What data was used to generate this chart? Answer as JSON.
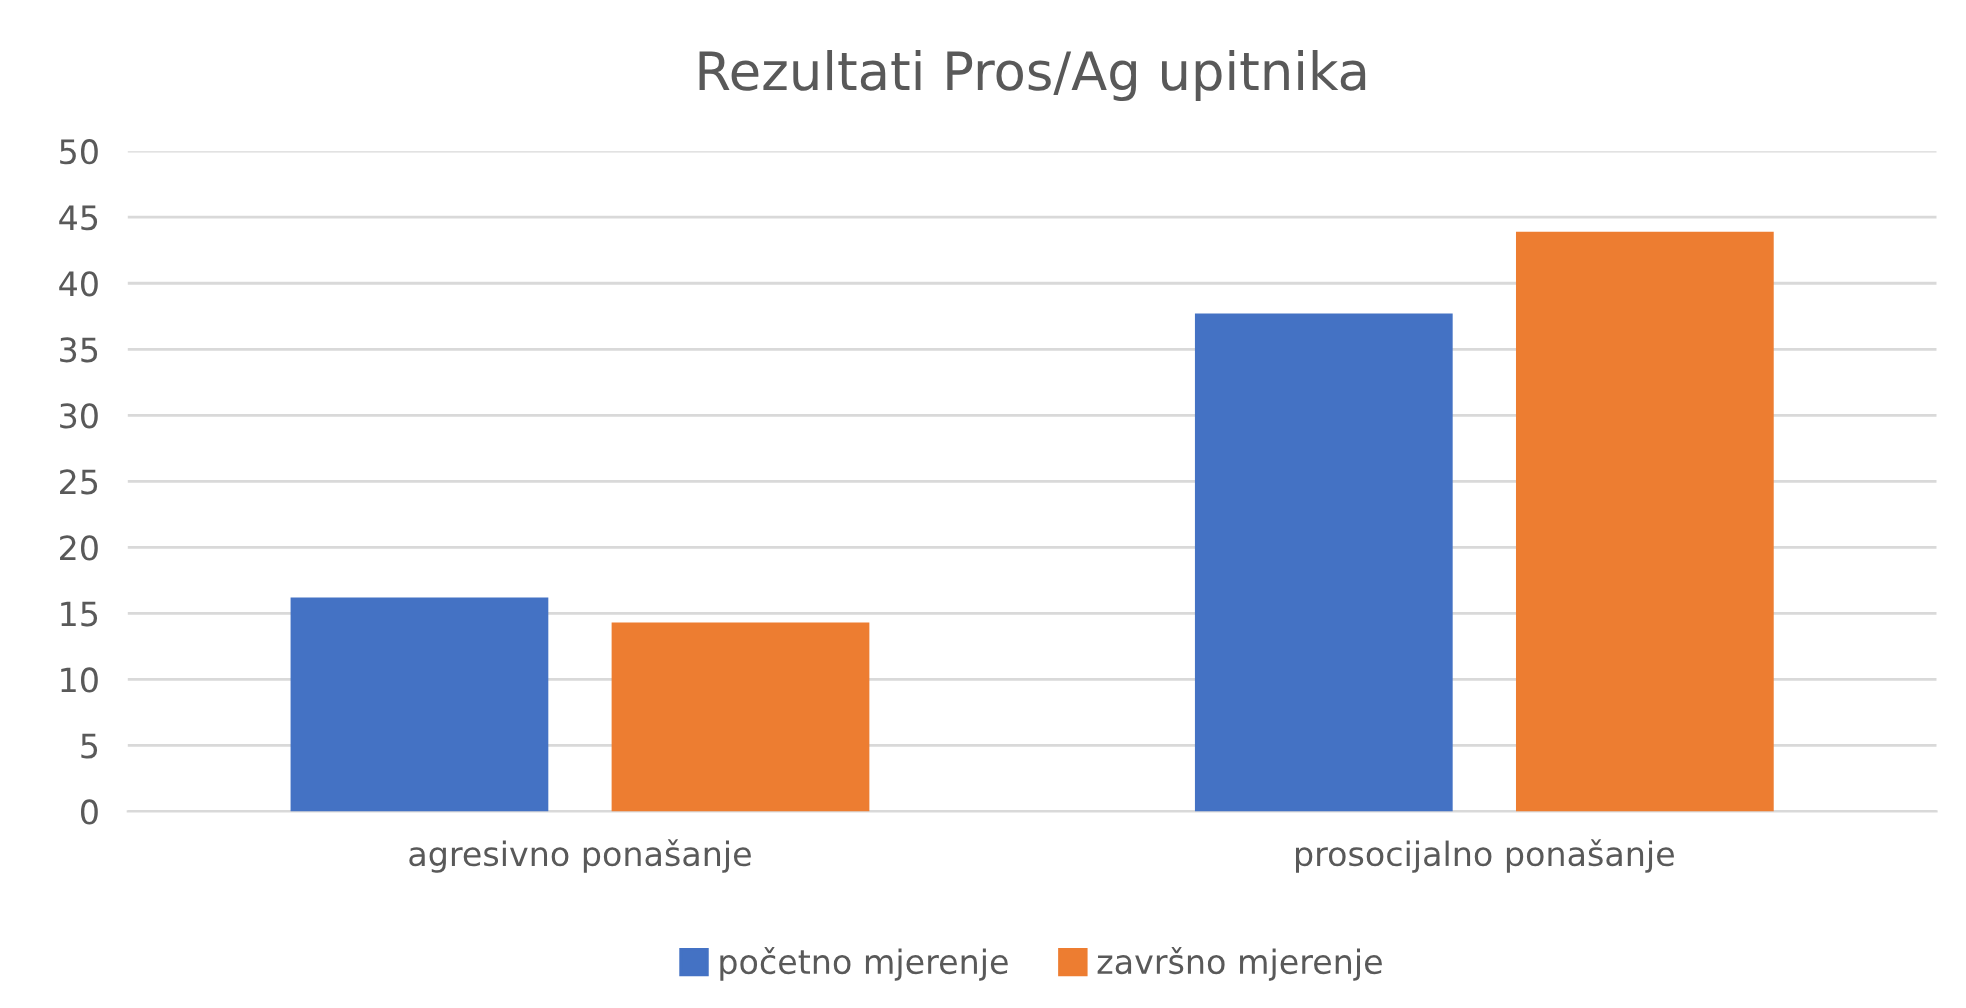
{
  "chart_data": {
    "type": "bar",
    "title": "Rezultati Pros/Ag upitnika",
    "categories": [
      "agresivno ponašanje",
      "prosocijalno ponašanje"
    ],
    "series": [
      {
        "name": "početno mjerenje",
        "color": "#4472c4",
        "values": [
          16.2,
          37.7
        ]
      },
      {
        "name": "završno mjerenje",
        "color": "#ed7d31",
        "values": [
          14.3,
          43.9
        ]
      }
    ],
    "ylim": [
      0,
      50
    ],
    "yticks": [
      0,
      5,
      10,
      15,
      20,
      25,
      30,
      35,
      40,
      45,
      50
    ],
    "grid": "y",
    "legend": "bottom"
  }
}
